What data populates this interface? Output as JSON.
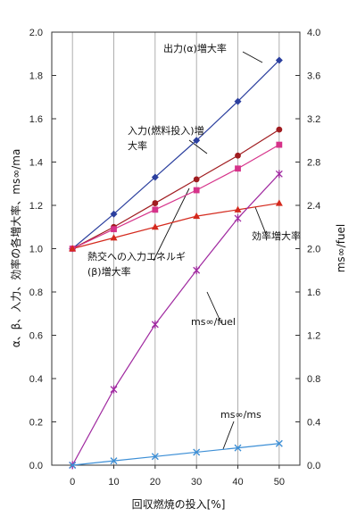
{
  "chart_data": {
    "type": "line",
    "xlabel": "回収燃焼の投入[%]",
    "ylabel_left": "α、β、入力、効率の各増大率、ms∞/ma",
    "ylabel_right": "ms∞/fuel",
    "x": [
      0,
      10,
      20,
      30,
      40,
      50
    ],
    "xticks": [
      "0",
      "10",
      "20",
      "30",
      "40",
      "50"
    ],
    "xlim": [
      -5,
      55
    ],
    "ylim_left": [
      0,
      2
    ],
    "ylim_right": [
      0,
      4
    ],
    "yticks_left": [
      "0.0",
      "0.2",
      "0.4",
      "0.6",
      "0.8",
      "1.0",
      "1.2",
      "1.4",
      "1.6",
      "1.8",
      "2.0"
    ],
    "yticks_right": [
      "0.0",
      "0.4",
      "0.8",
      "1.2",
      "1.6",
      "2.0",
      "2.4",
      "2.8",
      "3.2",
      "3.6",
      "4.0"
    ],
    "grid": "vertical",
    "series": [
      {
        "name": "出力(α)増大率",
        "axis": "left",
        "color": "#2b3f9e",
        "marker": "diamond",
        "values": [
          1.0,
          1.16,
          1.33,
          1.5,
          1.68,
          1.87
        ]
      },
      {
        "name": "入力(燃料投入)増大率",
        "axis": "left",
        "color": "#a01c20",
        "marker": "circle",
        "values": [
          1.0,
          1.1,
          1.21,
          1.32,
          1.43,
          1.55
        ]
      },
      {
        "name": "熱交への入力エネルギ(β)増大率",
        "axis": "left",
        "color": "#d6338a",
        "marker": "square",
        "values": [
          1.0,
          1.09,
          1.18,
          1.27,
          1.37,
          1.48
        ]
      },
      {
        "name": "効率増大率",
        "axis": "left",
        "color": "#d42a1e",
        "marker": "triangle",
        "values": [
          1.0,
          1.05,
          1.1,
          1.15,
          1.18,
          1.21
        ]
      },
      {
        "name": "ms∞/fuel",
        "axis": "right",
        "color": "#a02aa0",
        "marker": "star",
        "values": [
          0.0,
          0.7,
          1.3,
          1.8,
          2.28,
          2.69
        ]
      },
      {
        "name": "ms∞/ma",
        "axis": "left",
        "color": "#3d8fd6",
        "marker": "x",
        "values": [
          0.0,
          0.02,
          0.04,
          0.06,
          0.08,
          0.1
        ]
      }
    ],
    "annotations": [
      {
        "text": "出力(α)増大率"
      },
      {
        "text": "入力(燃料投入)増"
      },
      {
        "text": "大率"
      },
      {
        "text": "熱交への入力エネルギ"
      },
      {
        "text": "(β)増大率"
      },
      {
        "text": "効率増大率"
      },
      {
        "text": "ms∞/fuel"
      },
      {
        "text": "ms∞/ms"
      }
    ]
  }
}
